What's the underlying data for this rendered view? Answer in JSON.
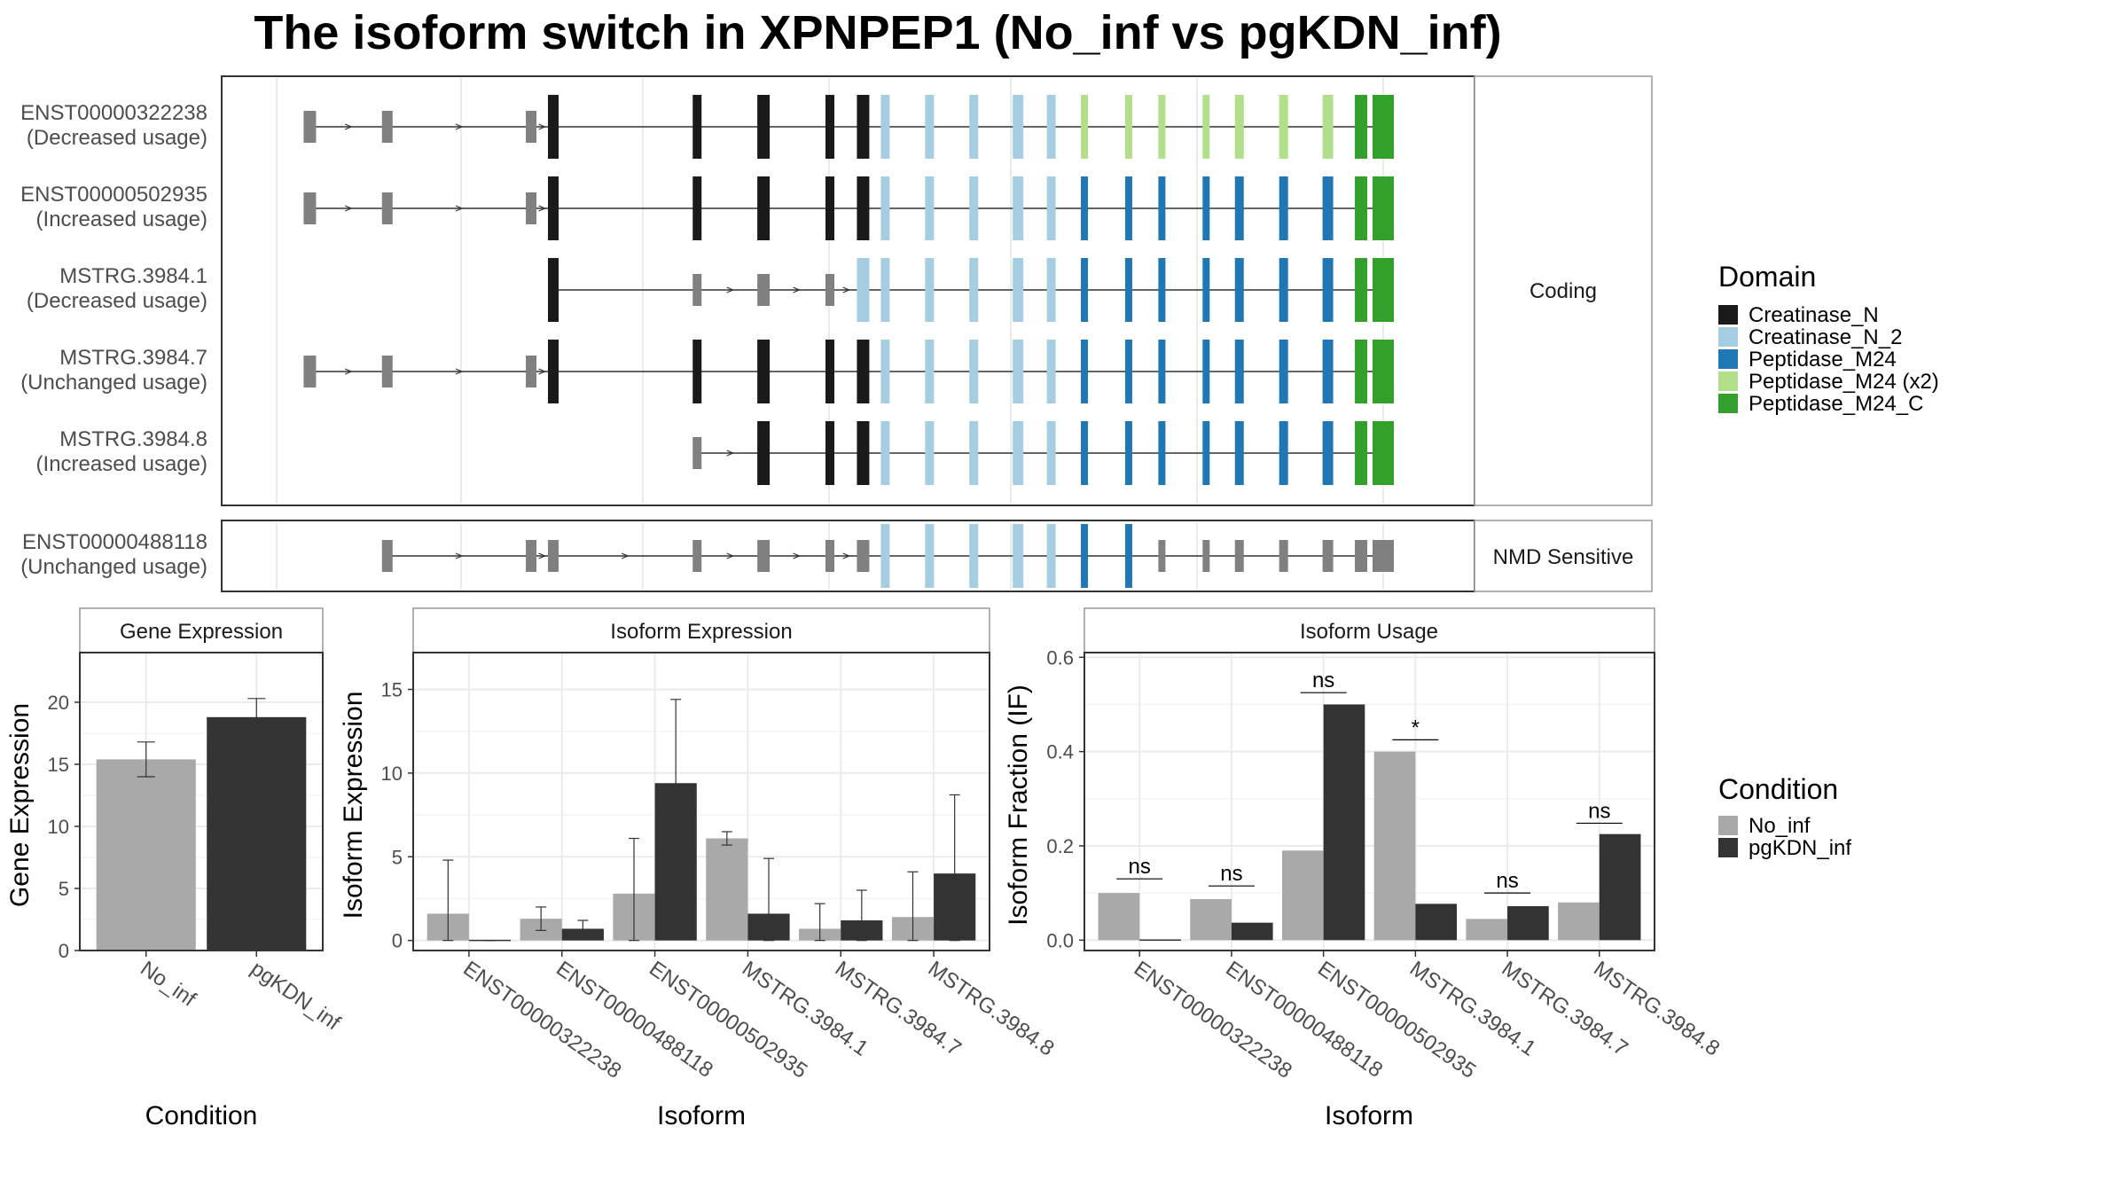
{
  "title": "The isoform switch in XPNPEP1 (No_inf vs pgKDN_inf)",
  "colors": {
    "no_inf": "#a9a9a9",
    "pgkdn_inf": "#333333",
    "utr": "#808080",
    "intron": "#333333",
    "Creatinase_N": "#1a1a1a",
    "Creatinase_N_2": "#a6cee3",
    "Peptidase_M24": "#1f78b4",
    "Peptidase_M24_x2": "#b2df8a",
    "Peptidase_M24_C": "#33a02c"
  },
  "transcripts": {
    "coding_label": "Coding",
    "nmd_label": "NMD Sensitive",
    "exon_columns": [
      0.03,
      0.1,
      0.23,
      0.25,
      0.38,
      0.44,
      0.5,
      0.53,
      0.55,
      0.59,
      0.63,
      0.67,
      0.7,
      0.73,
      0.77,
      0.8,
      0.84,
      0.87,
      0.91,
      0.95,
      0.98,
      1.0
    ],
    "coding": [
      {
        "label": "ENST00000322238",
        "usage": "(Decreased usage)",
        "start_col": 0,
        "domains": [
          "utr",
          "utr",
          "utr",
          "Creatinase_N",
          "Creatinase_N",
          "Creatinase_N",
          "Creatinase_N",
          "Creatinase_N",
          "Creatinase_N_2",
          "Creatinase_N_2",
          "Creatinase_N_2",
          "Creatinase_N_2",
          "Creatinase_N_2",
          "Peptidase_M24_x2",
          "Peptidase_M24_x2",
          "Peptidase_M24_x2",
          "Peptidase_M24_x2",
          "Peptidase_M24_x2",
          "Peptidase_M24_x2",
          "Peptidase_M24_x2",
          "Peptidase_M24_C",
          "Peptidase_M24_C"
        ]
      },
      {
        "label": "ENST00000502935",
        "usage": "(Increased usage)",
        "start_col": 0,
        "domains": [
          "utr",
          "utr",
          "utr",
          "Creatinase_N",
          "Creatinase_N",
          "Creatinase_N",
          "Creatinase_N",
          "Creatinase_N",
          "Creatinase_N_2",
          "Creatinase_N_2",
          "Creatinase_N_2",
          "Creatinase_N_2",
          "Creatinase_N_2",
          "Peptidase_M24",
          "Peptidase_M24",
          "Peptidase_M24",
          "Peptidase_M24",
          "Peptidase_M24",
          "Peptidase_M24",
          "Peptidase_M24",
          "Peptidase_M24_C",
          "Peptidase_M24_C"
        ]
      },
      {
        "label": "MSTRG.3984.1",
        "usage": "(Decreased usage)",
        "start_col": 3,
        "domains": [
          "utr",
          "utr",
          "utr",
          "Creatinase_N",
          "utr",
          "utr",
          "utr",
          "Creatinase_N_2",
          "Creatinase_N_2",
          "Creatinase_N_2",
          "Creatinase_N_2",
          "Creatinase_N_2",
          "Creatinase_N_2",
          "Peptidase_M24",
          "Peptidase_M24",
          "Peptidase_M24",
          "Peptidase_M24",
          "Peptidase_M24",
          "Peptidase_M24",
          "Peptidase_M24",
          "Peptidase_M24_C",
          "Peptidase_M24_C"
        ]
      },
      {
        "label": "MSTRG.3984.7",
        "usage": "(Unchanged usage)",
        "start_col": 0,
        "domains": [
          "utr",
          "utr",
          "utr",
          "Creatinase_N",
          "Creatinase_N",
          "Creatinase_N",
          "Creatinase_N",
          "Creatinase_N",
          "Creatinase_N_2",
          "Creatinase_N_2",
          "Creatinase_N_2",
          "Creatinase_N_2",
          "Creatinase_N_2",
          "Peptidase_M24",
          "Peptidase_M24",
          "Peptidase_M24",
          "Peptidase_M24",
          "Peptidase_M24",
          "Peptidase_M24",
          "Peptidase_M24",
          "Peptidase_M24_C",
          "Peptidase_M24_C"
        ]
      },
      {
        "label": "MSTRG.3984.8",
        "usage": "(Increased usage)",
        "start_col": 4,
        "domains": [
          "utr",
          "utr",
          "utr",
          "utr",
          "utr",
          "Creatinase_N",
          "Creatinase_N",
          "Creatinase_N",
          "Creatinase_N_2",
          "Creatinase_N_2",
          "Creatinase_N_2",
          "Creatinase_N_2",
          "Creatinase_N_2",
          "Peptidase_M24",
          "Peptidase_M24",
          "Peptidase_M24",
          "Peptidase_M24",
          "Peptidase_M24",
          "Peptidase_M24",
          "Peptidase_M24",
          "Peptidase_M24_C",
          "Peptidase_M24_C"
        ]
      }
    ],
    "nmd": [
      {
        "label": "ENST00000488118",
        "usage": "(Unchanged usage)",
        "start_col": 1,
        "domains": [
          "utr",
          "utr",
          "utr",
          "utr",
          "utr",
          "utr",
          "utr",
          "utr",
          "Creatinase_N_2",
          "Creatinase_N_2",
          "Creatinase_N_2",
          "Creatinase_N_2",
          "Creatinase_N_2",
          "Peptidase_M24",
          "Peptidase_M24",
          "utr",
          "utr",
          "utr",
          "utr",
          "utr",
          "utr",
          "utr"
        ]
      }
    ]
  },
  "legend_domain": {
    "title": "Domain",
    "items": [
      {
        "label": "Creatinase_N",
        "key": "Creatinase_N"
      },
      {
        "label": "Creatinase_N_2",
        "key": "Creatinase_N_2"
      },
      {
        "label": "Peptidase_M24",
        "key": "Peptidase_M24"
      },
      {
        "label": "Peptidase_M24 (x2)",
        "key": "Peptidase_M24_x2"
      },
      {
        "label": "Peptidase_M24_C",
        "key": "Peptidase_M24_C"
      }
    ]
  },
  "legend_condition": {
    "title": "Condition",
    "items": [
      {
        "label": "No_inf",
        "key": "no_inf"
      },
      {
        "label": "pgKDN_inf",
        "key": "pgkdn_inf"
      }
    ]
  },
  "chart_data": [
    {
      "type": "bar",
      "title": "Gene Expression",
      "xlabel": "Condition",
      "ylabel": "Gene Expression",
      "categories": [
        "No_inf",
        "pgKDN_inf"
      ],
      "values": [
        15.4,
        18.8
      ],
      "error_low": [
        14.0,
        17.3
      ],
      "error_high": [
        16.8,
        20.3
      ],
      "ylim": [
        0,
        24
      ],
      "yticks": [
        0,
        5,
        10,
        15,
        20
      ],
      "grid": true
    },
    {
      "type": "bar",
      "title": "Isoform Expression",
      "xlabel": "Isoform",
      "ylabel": "Isoform Expression",
      "categories": [
        "ENST00000322238",
        "ENST00000488118",
        "ENST00000502935",
        "MSTRG.3984.1",
        "MSTRG.3984.7",
        "MSTRG.3984.8"
      ],
      "series": [
        {
          "name": "No_inf",
          "values": [
            1.6,
            1.3,
            2.8,
            6.1,
            0.7,
            1.4
          ],
          "error_low": [
            0,
            0.6,
            0,
            5.7,
            0,
            0
          ],
          "error_high": [
            4.8,
            2.0,
            6.1,
            6.5,
            2.2,
            4.1
          ]
        },
        {
          "name": "pgKDN_inf",
          "values": [
            0.0,
            0.7,
            9.4,
            1.6,
            1.2,
            4.0
          ],
          "error_low": [
            0,
            0.2,
            4.4,
            0,
            0,
            0
          ],
          "error_high": [
            0,
            1.2,
            14.4,
            4.9,
            3.0,
            8.7
          ]
        }
      ],
      "ylim": [
        -0.6,
        17.2
      ],
      "yticks": [
        0,
        5,
        10,
        15
      ],
      "grid": true
    },
    {
      "type": "bar",
      "title": "Isoform Usage",
      "xlabel": "Isoform",
      "ylabel": "Isoform Fraction (IF)",
      "categories": [
        "ENST00000322238",
        "ENST00000488118",
        "ENST00000502935",
        "MSTRG.3984.1",
        "MSTRG.3984.7",
        "MSTRG.3984.8"
      ],
      "series": [
        {
          "name": "No_inf",
          "values": [
            0.1,
            0.087,
            0.19,
            0.4,
            0.045,
            0.08
          ]
        },
        {
          "name": "pgKDN_inf",
          "values": [
            0.0,
            0.037,
            0.5,
            0.077,
            0.072,
            0.225
          ]
        }
      ],
      "significance": [
        "ns",
        "ns",
        "ns",
        "*",
        "ns",
        "ns"
      ],
      "sig_level": [
        0.13,
        0.115,
        0.525,
        0.425,
        0.1,
        0.248
      ],
      "ylim": [
        -0.022,
        0.61
      ],
      "yticks": [
        0.0,
        0.2,
        0.4,
        0.6
      ],
      "ytick_labels": [
        "0.0",
        "0.2",
        "0.4",
        "0.6"
      ],
      "grid": true
    }
  ]
}
